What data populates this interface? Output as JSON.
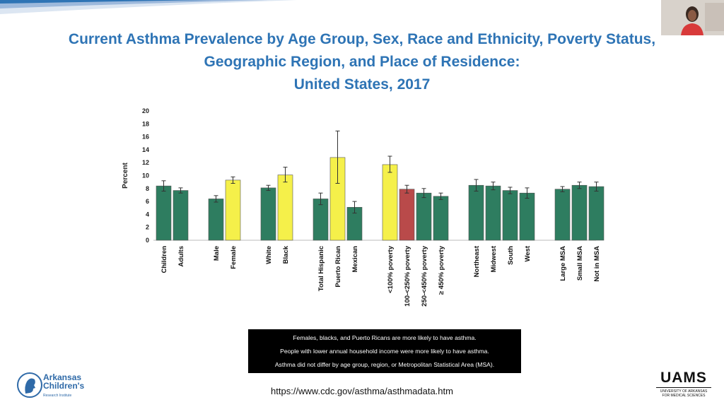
{
  "title_lines": [
    "Current Asthma Prevalence by Age Group, Sex, Race and Ethnicity, Poverty Status,",
    "Geographic Region, and Place of Residence:",
    "United States, 2017"
  ],
  "chart_data": {
    "type": "bar",
    "ylabel": "Percent",
    "ylim": [
      0,
      20
    ],
    "yticks": [
      0,
      2,
      4,
      6,
      8,
      10,
      12,
      14,
      16,
      18,
      20
    ],
    "grid": false,
    "groups": [
      {
        "categories": [
          "Children",
          "Adults"
        ],
        "values": [
          8.4,
          7.7
        ],
        "lower": [
          7.6,
          7.3
        ],
        "upper": [
          9.2,
          8.1
        ],
        "colors": [
          "#2e7d60",
          "#2e7d60"
        ]
      },
      {
        "categories": [
          "Male",
          "Female"
        ],
        "values": [
          6.4,
          9.3
        ],
        "lower": [
          5.9,
          8.8
        ],
        "upper": [
          6.9,
          9.8
        ],
        "colors": [
          "#2e7d60",
          "#f5f04a"
        ]
      },
      {
        "categories": [
          "White",
          "Black"
        ],
        "values": [
          8.1,
          10.1
        ],
        "lower": [
          7.7,
          9.0
        ],
        "upper": [
          8.5,
          11.3
        ],
        "colors": [
          "#2e7d60",
          "#f5f04a"
        ]
      },
      {
        "categories": [
          "Total Hispanic",
          "Puerto Rican",
          "Mexican"
        ],
        "values": [
          6.4,
          12.8,
          5.1
        ],
        "lower": [
          5.5,
          8.8,
          4.2
        ],
        "upper": [
          7.3,
          16.9,
          6.0
        ],
        "colors": [
          "#2e7d60",
          "#f5f04a",
          "#2e7d60"
        ]
      },
      {
        "categories": [
          "<100% poverty",
          "100-<250% poverty",
          "250-<450% poverty",
          "≥ 450% poverty"
        ],
        "values": [
          11.7,
          7.9,
          7.3,
          6.8
        ],
        "lower": [
          10.5,
          7.3,
          6.6,
          6.3
        ],
        "upper": [
          13.0,
          8.5,
          8.0,
          7.3
        ],
        "colors": [
          "#f5f04a",
          "#b94a4a",
          "#2e7d60",
          "#2e7d60"
        ]
      },
      {
        "categories": [
          "Northeast",
          "Midwest",
          "South",
          "West"
        ],
        "values": [
          8.5,
          8.4,
          7.7,
          7.3
        ],
        "lower": [
          7.6,
          7.8,
          7.2,
          6.5
        ],
        "upper": [
          9.4,
          9.0,
          8.2,
          8.1
        ],
        "colors": [
          "#2e7d60",
          "#2e7d60",
          "#2e7d60",
          "#2e7d60"
        ]
      },
      {
        "categories": [
          "Large MSA",
          "Small MSA",
          "Not in MSA"
        ],
        "values": [
          7.9,
          8.5,
          8.3
        ],
        "lower": [
          7.5,
          8.0,
          7.6
        ],
        "upper": [
          8.3,
          9.0,
          9.0
        ],
        "colors": [
          "#2e7d60",
          "#2e7d60",
          "#2e7d60"
        ]
      }
    ]
  },
  "notes": [
    "Females, blacks, and Puerto Ricans are more likely to have asthma.",
    "People with lower annual household income were more likely to have asthma.",
    "Asthma did not differ by age group, region, or Metropolitan Statistical Area (MSA)."
  ],
  "source_url": "https://www.cdc.gov/asthma/asthmadata.htm",
  "logo_left": {
    "name_lines": [
      "Arkansas",
      "Children's"
    ],
    "sub": "Research Institute"
  },
  "logo_right": {
    "mark": "UAMS",
    "sub_lines": [
      "UNIVERSITY OF ARKANSAS",
      "FOR MEDICAL SCIENCES"
    ]
  }
}
